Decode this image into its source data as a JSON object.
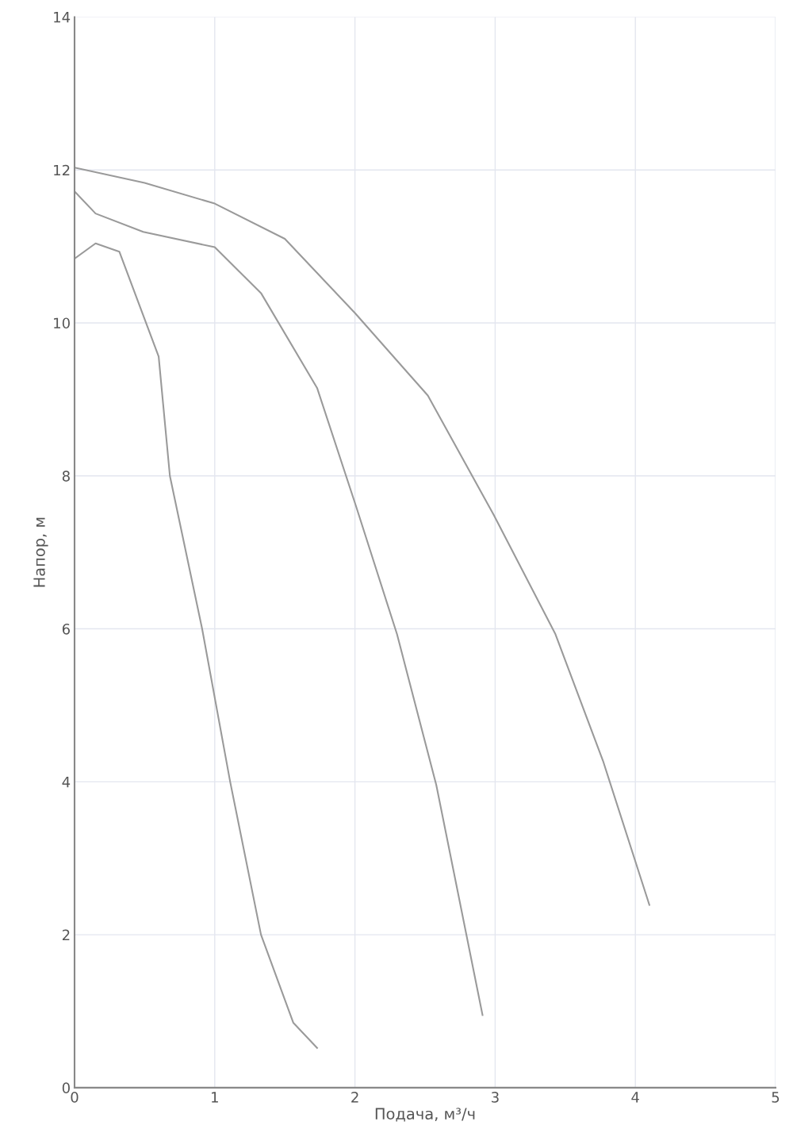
{
  "chart_data": {
    "type": "line",
    "xlabel": "Подача, м³/ч",
    "ylabel": "Напор, м",
    "xlim": [
      0,
      5
    ],
    "xticks": [
      0,
      1,
      2,
      3,
      4,
      5
    ],
    "ylim": [
      0,
      14
    ],
    "yticks": [
      0,
      2,
      4,
      6,
      8,
      10,
      12,
      14
    ],
    "grid": true,
    "marker": "none",
    "line_style": "solid",
    "series": [
      {
        "color": "#9a9a9a",
        "x": [
          0,
          0.5,
          1.0,
          1.5,
          2.0,
          2.52,
          2.99,
          3.43,
          3.77,
          4.1
        ],
        "values": [
          12.03,
          11.83,
          11.56,
          11.1,
          10.13,
          9.05,
          7.49,
          5.93,
          4.27,
          2.39
        ]
      },
      {
        "color": "#9a9a9a",
        "x": [
          0,
          0.15,
          0.49,
          1.0,
          1.33,
          1.73,
          2.01,
          2.3,
          2.58,
          2.91
        ],
        "values": [
          11.72,
          11.43,
          11.19,
          10.99,
          10.39,
          9.15,
          7.59,
          5.93,
          3.96,
          0.95
        ]
      },
      {
        "color": "#9a9a9a",
        "x": [
          0,
          0.15,
          0.32,
          0.6,
          0.68,
          0.91,
          1.11,
          1.33,
          1.56,
          1.73
        ],
        "values": [
          10.84,
          11.04,
          10.93,
          9.56,
          8.0,
          6.0,
          4.0,
          2.0,
          0.85,
          0.52
        ]
      }
    ]
  }
}
